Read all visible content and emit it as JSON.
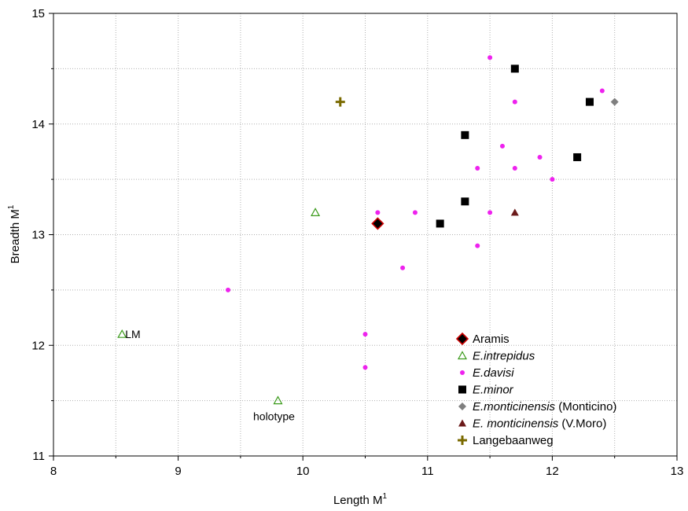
{
  "chart_data": {
    "type": "scatter",
    "xlabel": "Length M",
    "xlabel_sup": "1",
    "ylabel": "Breadth M",
    "ylabel_sup": "1",
    "xlim": [
      8,
      13
    ],
    "ylim": [
      11,
      15
    ],
    "x_ticks": [
      "8",
      "9",
      "10",
      "11",
      "12",
      "13"
    ],
    "y_ticks": [
      "11",
      "12",
      "13",
      "14",
      "15"
    ],
    "grid": "dotted, at major and half-unit ticks",
    "legend_position": "lower-right",
    "series": [
      {
        "name": "Aramis",
        "name_italic": "",
        "name_suffix": "",
        "marker": "diamond",
        "color": "#000000",
        "edge_color": "#cc0000",
        "points": [
          [
            10.6,
            13.1
          ]
        ]
      },
      {
        "name": "",
        "name_italic": "E.intrepidus",
        "name_suffix": "",
        "marker": "triangle-open",
        "color": "#3a9a1a",
        "points": [
          [
            8.55,
            12.1
          ],
          [
            9.8,
            11.5
          ],
          [
            10.1,
            13.2
          ]
        ]
      },
      {
        "name": "",
        "name_italic": "E.davisi",
        "name_suffix": "",
        "marker": "circle",
        "color": "#ee22ee",
        "points": [
          [
            9.4,
            12.5
          ],
          [
            10.5,
            12.1
          ],
          [
            10.5,
            11.8
          ],
          [
            10.6,
            13.2
          ],
          [
            10.8,
            12.7
          ],
          [
            10.9,
            13.2
          ],
          [
            11.4,
            13.6
          ],
          [
            11.4,
            12.9
          ],
          [
            11.5,
            14.6
          ],
          [
            11.5,
            13.2
          ],
          [
            11.6,
            13.8
          ],
          [
            11.7,
            14.2
          ],
          [
            11.7,
            13.6
          ],
          [
            11.9,
            13.7
          ],
          [
            12.0,
            13.5
          ],
          [
            12.4,
            14.3
          ]
        ]
      },
      {
        "name": "",
        "name_italic": "E.minor",
        "name_suffix": "",
        "marker": "square",
        "color": "#000000",
        "points": [
          [
            11.1,
            13.1
          ],
          [
            11.3,
            13.9
          ],
          [
            11.3,
            13.3
          ],
          [
            11.7,
            14.5
          ],
          [
            12.2,
            13.7
          ],
          [
            12.3,
            14.2
          ]
        ]
      },
      {
        "name": "",
        "name_italic": "E.monticinensis",
        "name_suffix": " (Monticino)",
        "marker": "diamond-small",
        "color": "#7f7f7f",
        "points": [
          [
            12.5,
            14.2
          ]
        ]
      },
      {
        "name": "",
        "name_italic": "E. monticinensis",
        "name_suffix": " (V.Moro)",
        "marker": "triangle",
        "color": "#6b1a1a",
        "points": [
          [
            11.7,
            13.2
          ]
        ]
      },
      {
        "name": "Langebaanweg",
        "name_italic": "",
        "name_suffix": "",
        "marker": "plus",
        "color": "#7a6a00",
        "points": [
          [
            10.3,
            14.2
          ]
        ]
      }
    ],
    "annotations": [
      {
        "text": "LM",
        "x": 8.55,
        "y": 12.1,
        "placement": "right"
      },
      {
        "text": "holotype",
        "x": 9.8,
        "y": 11.5,
        "placement": "below"
      }
    ]
  }
}
